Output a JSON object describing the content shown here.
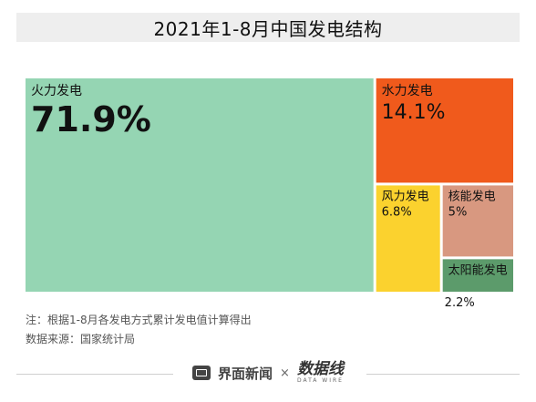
{
  "title": "2021年1-8月中国发电结构",
  "chart_data": {
    "type": "treemap",
    "title": "2021年1-8月中国发电结构",
    "items": [
      {
        "name": "火力发电",
        "label": "71.9%",
        "value": 71.9,
        "color": "#95d5b3"
      },
      {
        "name": "水力发电",
        "label": "14.1%",
        "value": 14.1,
        "color": "#f05a1c"
      },
      {
        "name": "风力发电",
        "label": "6.8%",
        "value": 6.8,
        "color": "#fbd22e"
      },
      {
        "name": "核能发电",
        "label": "5%",
        "value": 5.0,
        "color": "#d89880"
      },
      {
        "name": "太阳能发电",
        "label": "2.2%",
        "value": 2.2,
        "color": "#5c9b6b"
      }
    ]
  },
  "notes": {
    "note": "注：根据1-8月各发电方式累计发电值计算得出",
    "source": "数据来源：国家统计局"
  },
  "footer": {
    "brand": "界面新闻",
    "times": "×",
    "partner": "数据线",
    "partner_sub": "DATA WIRE"
  }
}
